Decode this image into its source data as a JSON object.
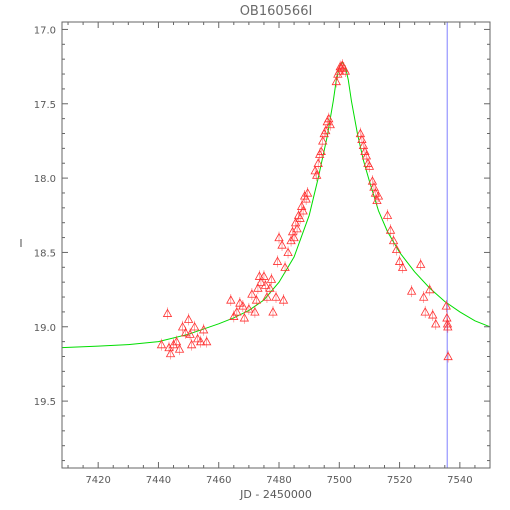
{
  "chart_data": {
    "type": "scatter",
    "title": "OB160566I",
    "xlabel": "JD - 2450000",
    "ylabel": "I",
    "xlim": [
      7408,
      7550
    ],
    "ylim": [
      19.95,
      16.95
    ],
    "y_inverted": true,
    "x_ticks": [
      7420,
      7440,
      7460,
      7480,
      7500,
      7520,
      7540
    ],
    "y_ticks": [
      17.0,
      17.5,
      18.0,
      18.5,
      19.0,
      19.5
    ],
    "x_tick_labels": [
      "7420",
      "7440",
      "7460",
      "7480",
      "7500",
      "7520",
      "7540"
    ],
    "y_tick_labels": [
      "17.0",
      "17.5",
      "18.0",
      "18.5",
      "19.0",
      "19.5"
    ],
    "grid": false,
    "vertical_line": {
      "x": 7535.8,
      "color": "#8080ff"
    },
    "model": {
      "name": "",
      "color": "#00dd00",
      "x": [
        7408,
        7420,
        7430,
        7440,
        7450,
        7460,
        7465,
        7470,
        7475,
        7480,
        7485,
        7490,
        7493,
        7496,
        7498,
        7499,
        7500,
        7501,
        7502,
        7503,
        7504,
        7506,
        7508,
        7510,
        7513,
        7516,
        7520,
        7525,
        7530,
        7535,
        7540,
        7545,
        7550
      ],
      "y": [
        19.14,
        19.13,
        19.12,
        19.1,
        19.05,
        18.98,
        18.94,
        18.89,
        18.82,
        18.7,
        18.53,
        18.25,
        18.0,
        17.72,
        17.48,
        17.34,
        17.25,
        17.22,
        17.25,
        17.34,
        17.48,
        17.7,
        17.88,
        18.02,
        18.22,
        18.36,
        18.5,
        18.63,
        18.74,
        18.83,
        18.9,
        18.96,
        19.0
      ]
    },
    "series": [
      {
        "name": "",
        "color": "#ff3030",
        "marker": "triangle",
        "points": [
          [
            7441,
            19.12
          ],
          [
            7443,
            18.91
          ],
          [
            7443.5,
            19.14
          ],
          [
            7444,
            19.18
          ],
          [
            7445,
            19.12
          ],
          [
            7446,
            19.1
          ],
          [
            7447,
            19.15
          ],
          [
            7448,
            19.0
          ],
          [
            7449,
            19.04
          ],
          [
            7450,
            18.95
          ],
          [
            7450.5,
            19.05
          ],
          [
            7451,
            19.12
          ],
          [
            7452,
            19.0
          ],
          [
            7453,
            19.08
          ],
          [
            7454,
            19.1
          ],
          [
            7455,
            19.02
          ],
          [
            7456,
            19.1
          ],
          [
            7464,
            18.82
          ],
          [
            7465,
            18.93
          ],
          [
            7466,
            18.9
          ],
          [
            7467,
            18.84
          ],
          [
            7468,
            18.86
          ],
          [
            7468.5,
            18.94
          ],
          [
            7470,
            18.88
          ],
          [
            7471,
            18.78
          ],
          [
            7472,
            18.9
          ],
          [
            7472.5,
            18.82
          ],
          [
            7473,
            18.74
          ],
          [
            7473.5,
            18.66
          ],
          [
            7474,
            18.7
          ],
          [
            7475,
            18.66
          ],
          [
            7475.5,
            18.72
          ],
          [
            7476,
            18.8
          ],
          [
            7477,
            18.74
          ],
          [
            7477.5,
            18.68
          ],
          [
            7478,
            18.9
          ],
          [
            7479,
            18.8
          ],
          [
            7479.5,
            18.56
          ],
          [
            7480,
            18.4
          ],
          [
            7481,
            18.45
          ],
          [
            7481.5,
            18.82
          ],
          [
            7482,
            18.6
          ],
          [
            7483,
            18.5
          ],
          [
            7484,
            18.42
          ],
          [
            7484.5,
            18.36
          ],
          [
            7485,
            18.4
          ],
          [
            7485.5,
            18.3
          ],
          [
            7486,
            18.34
          ],
          [
            7486.5,
            18.25
          ],
          [
            7487,
            18.27
          ],
          [
            7487.5,
            18.19
          ],
          [
            7488,
            18.22
          ],
          [
            7488.5,
            18.12
          ],
          [
            7489,
            18.14
          ],
          [
            7489.5,
            18.1
          ],
          [
            7492,
            17.95
          ],
          [
            7492.5,
            17.98
          ],
          [
            7493,
            17.9
          ],
          [
            7493.5,
            17.84
          ],
          [
            7494,
            17.82
          ],
          [
            7494.5,
            17.75
          ],
          [
            7495,
            17.7
          ],
          [
            7495.5,
            17.68
          ],
          [
            7496,
            17.62
          ],
          [
            7496.5,
            17.6
          ],
          [
            7497,
            17.64
          ],
          [
            7499,
            17.35
          ],
          [
            7499.5,
            17.3
          ],
          [
            7500,
            17.28
          ],
          [
            7500.3,
            17.25
          ],
          [
            7500.7,
            17.26
          ],
          [
            7501,
            17.24
          ],
          [
            7501.5,
            17.26
          ],
          [
            7502,
            17.28
          ],
          [
            7507,
            17.7
          ],
          [
            7507.5,
            17.74
          ],
          [
            7508,
            17.78
          ],
          [
            7508.5,
            17.82
          ],
          [
            7509,
            17.85
          ],
          [
            7509.5,
            17.9
          ],
          [
            7510,
            17.92
          ],
          [
            7511,
            18.02
          ],
          [
            7511.5,
            18.06
          ],
          [
            7512,
            18.1
          ],
          [
            7512.5,
            18.15
          ],
          [
            7513,
            18.12
          ],
          [
            7516,
            18.25
          ],
          [
            7517,
            18.35
          ],
          [
            7518,
            18.42
          ],
          [
            7519,
            18.48
          ],
          [
            7520,
            18.56
          ],
          [
            7521,
            18.6
          ],
          [
            7524,
            18.76
          ],
          [
            7527,
            18.58
          ],
          [
            7528,
            18.8
          ],
          [
            7528.5,
            18.9
          ],
          [
            7530,
            18.75
          ],
          [
            7531,
            18.92
          ],
          [
            7532,
            18.98
          ],
          [
            7535.5,
            18.86
          ],
          [
            7535.7,
            18.94
          ],
          [
            7535.9,
            18.98
          ],
          [
            7536,
            19.0
          ],
          [
            7536.1,
            19.2
          ]
        ]
      }
    ]
  }
}
